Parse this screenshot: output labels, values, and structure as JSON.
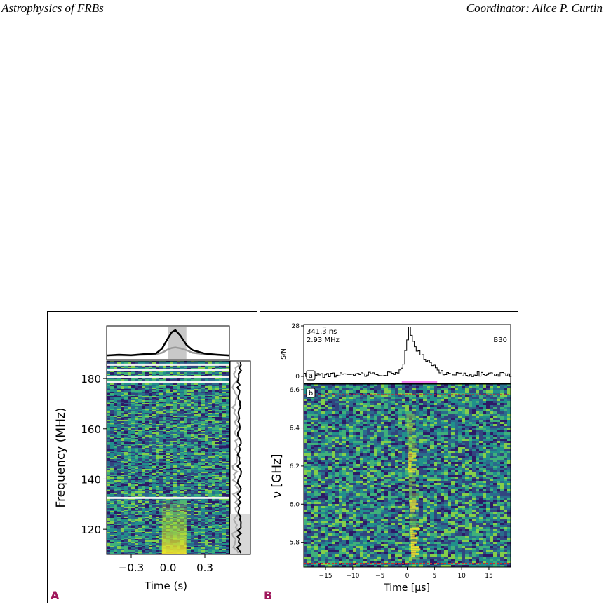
{
  "header": {
    "left": "Astrophysics of FRBs",
    "right": "Coordinator: Alice P. Curtin"
  },
  "colors": {
    "panel_label": "#a0185c",
    "heatmap_low": "#2d1a66",
    "heatmap_mid": "#26828e",
    "heatmap_high": "#fde725",
    "pink_bar": "#ee82ee",
    "red_line": "#d62728"
  },
  "panel_a": {
    "label": "A",
    "chart_data": {
      "type": "heatmap",
      "xlabel": "Time (s)",
      "ylabel": "Frequency (MHz)",
      "xlim": [
        -0.5,
        0.5
      ],
      "ylim": [
        110,
        187
      ],
      "x_ticks": [
        "−0.3",
        "0.0",
        "0.3"
      ],
      "x_tick_values": [
        -0.3,
        0.0,
        0.3
      ],
      "y_ticks": [
        "120",
        "140",
        "160",
        "180"
      ],
      "y_tick_values": [
        120,
        140,
        160,
        180
      ],
      "masked_channels_mhz": [
        183.5,
        185.5,
        178.5,
        180.5,
        132.5
      ],
      "burst": {
        "t_center_s": 0.06,
        "t_range_s": [
          -0.05,
          0.15
        ],
        "freq_range_mhz": [
          110,
          133
        ]
      },
      "time_profile": {
        "t": [
          -0.5,
          -0.4,
          -0.3,
          -0.2,
          -0.1,
          -0.05,
          0.0,
          0.03,
          0.06,
          0.1,
          0.15,
          0.2,
          0.3,
          0.4,
          0.5
        ],
        "flux": [
          0.05,
          0.08,
          0.06,
          0.1,
          0.12,
          0.3,
          0.7,
          0.92,
          1.0,
          0.8,
          0.45,
          0.25,
          0.12,
          0.08,
          0.05
        ],
        "grey": [
          0.05,
          0.06,
          0.05,
          0.08,
          0.1,
          0.15,
          0.28,
          0.33,
          0.35,
          0.32,
          0.25,
          0.15,
          0.1,
          0.07,
          0.05
        ]
      },
      "shaded_window_s": [
        0.0,
        0.15
      ]
    }
  },
  "panel_b": {
    "label": "B",
    "annotation_line1": "341.3̅ ns",
    "annotation_line2": "2.93 MHz",
    "tag": "B30",
    "subpanel_a": "a",
    "subpanel_b": "b",
    "chart_data": {
      "type": "heatmap",
      "xlabel": "Time [μs]",
      "ylabel": "ν [GHz]",
      "top_ylabel": "S/N",
      "top_y_ticks": [
        "0",
        "28"
      ],
      "top_y_tick_values": [
        0,
        28
      ],
      "xlim": [
        -19,
        19
      ],
      "ylim": [
        5.67,
        6.63
      ],
      "x_ticks": [
        "−15",
        "−10",
        "−5",
        "0",
        "5",
        "10",
        "15"
      ],
      "x_tick_values": [
        -15,
        -10,
        -5,
        0,
        5,
        10,
        15
      ],
      "y_ticks": [
        "5.8",
        "6.0",
        "6.2",
        "6.4",
        "6.6"
      ],
      "y_tick_values": [
        5.8,
        6.0,
        6.2,
        6.4,
        6.6
      ],
      "red_lines_ghz": [
        6.575,
        5.69
      ],
      "pink_bar_us": [
        -1,
        5.5
      ],
      "profile": {
        "t": [
          -19,
          -15,
          -10,
          -5,
          -2,
          -1,
          -0.5,
          0,
          0.3,
          0.8,
          1.5,
          2.5,
          3.5,
          4.5,
          5.5,
          7,
          10,
          15,
          19
        ],
        "sn": [
          1,
          0.5,
          1.5,
          1,
          2,
          4,
          14,
          22,
          28,
          20,
          14,
          12,
          9,
          6,
          3,
          1.5,
          1,
          1.5,
          1
        ]
      }
    }
  }
}
